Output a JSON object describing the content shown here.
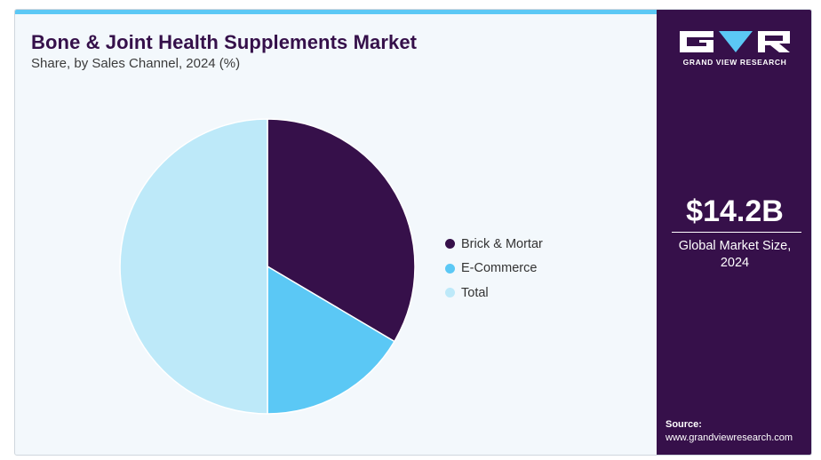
{
  "title": "Bone & Joint Health Supplements Market",
  "subtitle": "Share, by Sales Channel, 2024 (%)",
  "colors": {
    "accent_bar": "#5bc8f5",
    "sidebar": "#36104a",
    "background": "#f3f8fc"
  },
  "chart_data": {
    "type": "pie",
    "title": "Bone & Joint Health Supplements Market",
    "subtitle": "Share, by Sales Channel, 2024 (%)",
    "categories": [
      "Brick & Mortar",
      "E-Commerce",
      "Total"
    ],
    "values": [
      33.5,
      16.5,
      50.0
    ],
    "colors": [
      "#36104a",
      "#5bc8f5",
      "#bde9f9"
    ],
    "start_angle_deg": 0,
    "direction": "clockwise",
    "legend_position": "right"
  },
  "sidebar": {
    "brand_name": "GRAND VIEW RESEARCH",
    "market_value": "$14.2B",
    "market_caption_line1": "Global Market Size,",
    "market_caption_line2": "2024",
    "source_label": "Source:",
    "source_url": "www.grandviewresearch.com"
  }
}
